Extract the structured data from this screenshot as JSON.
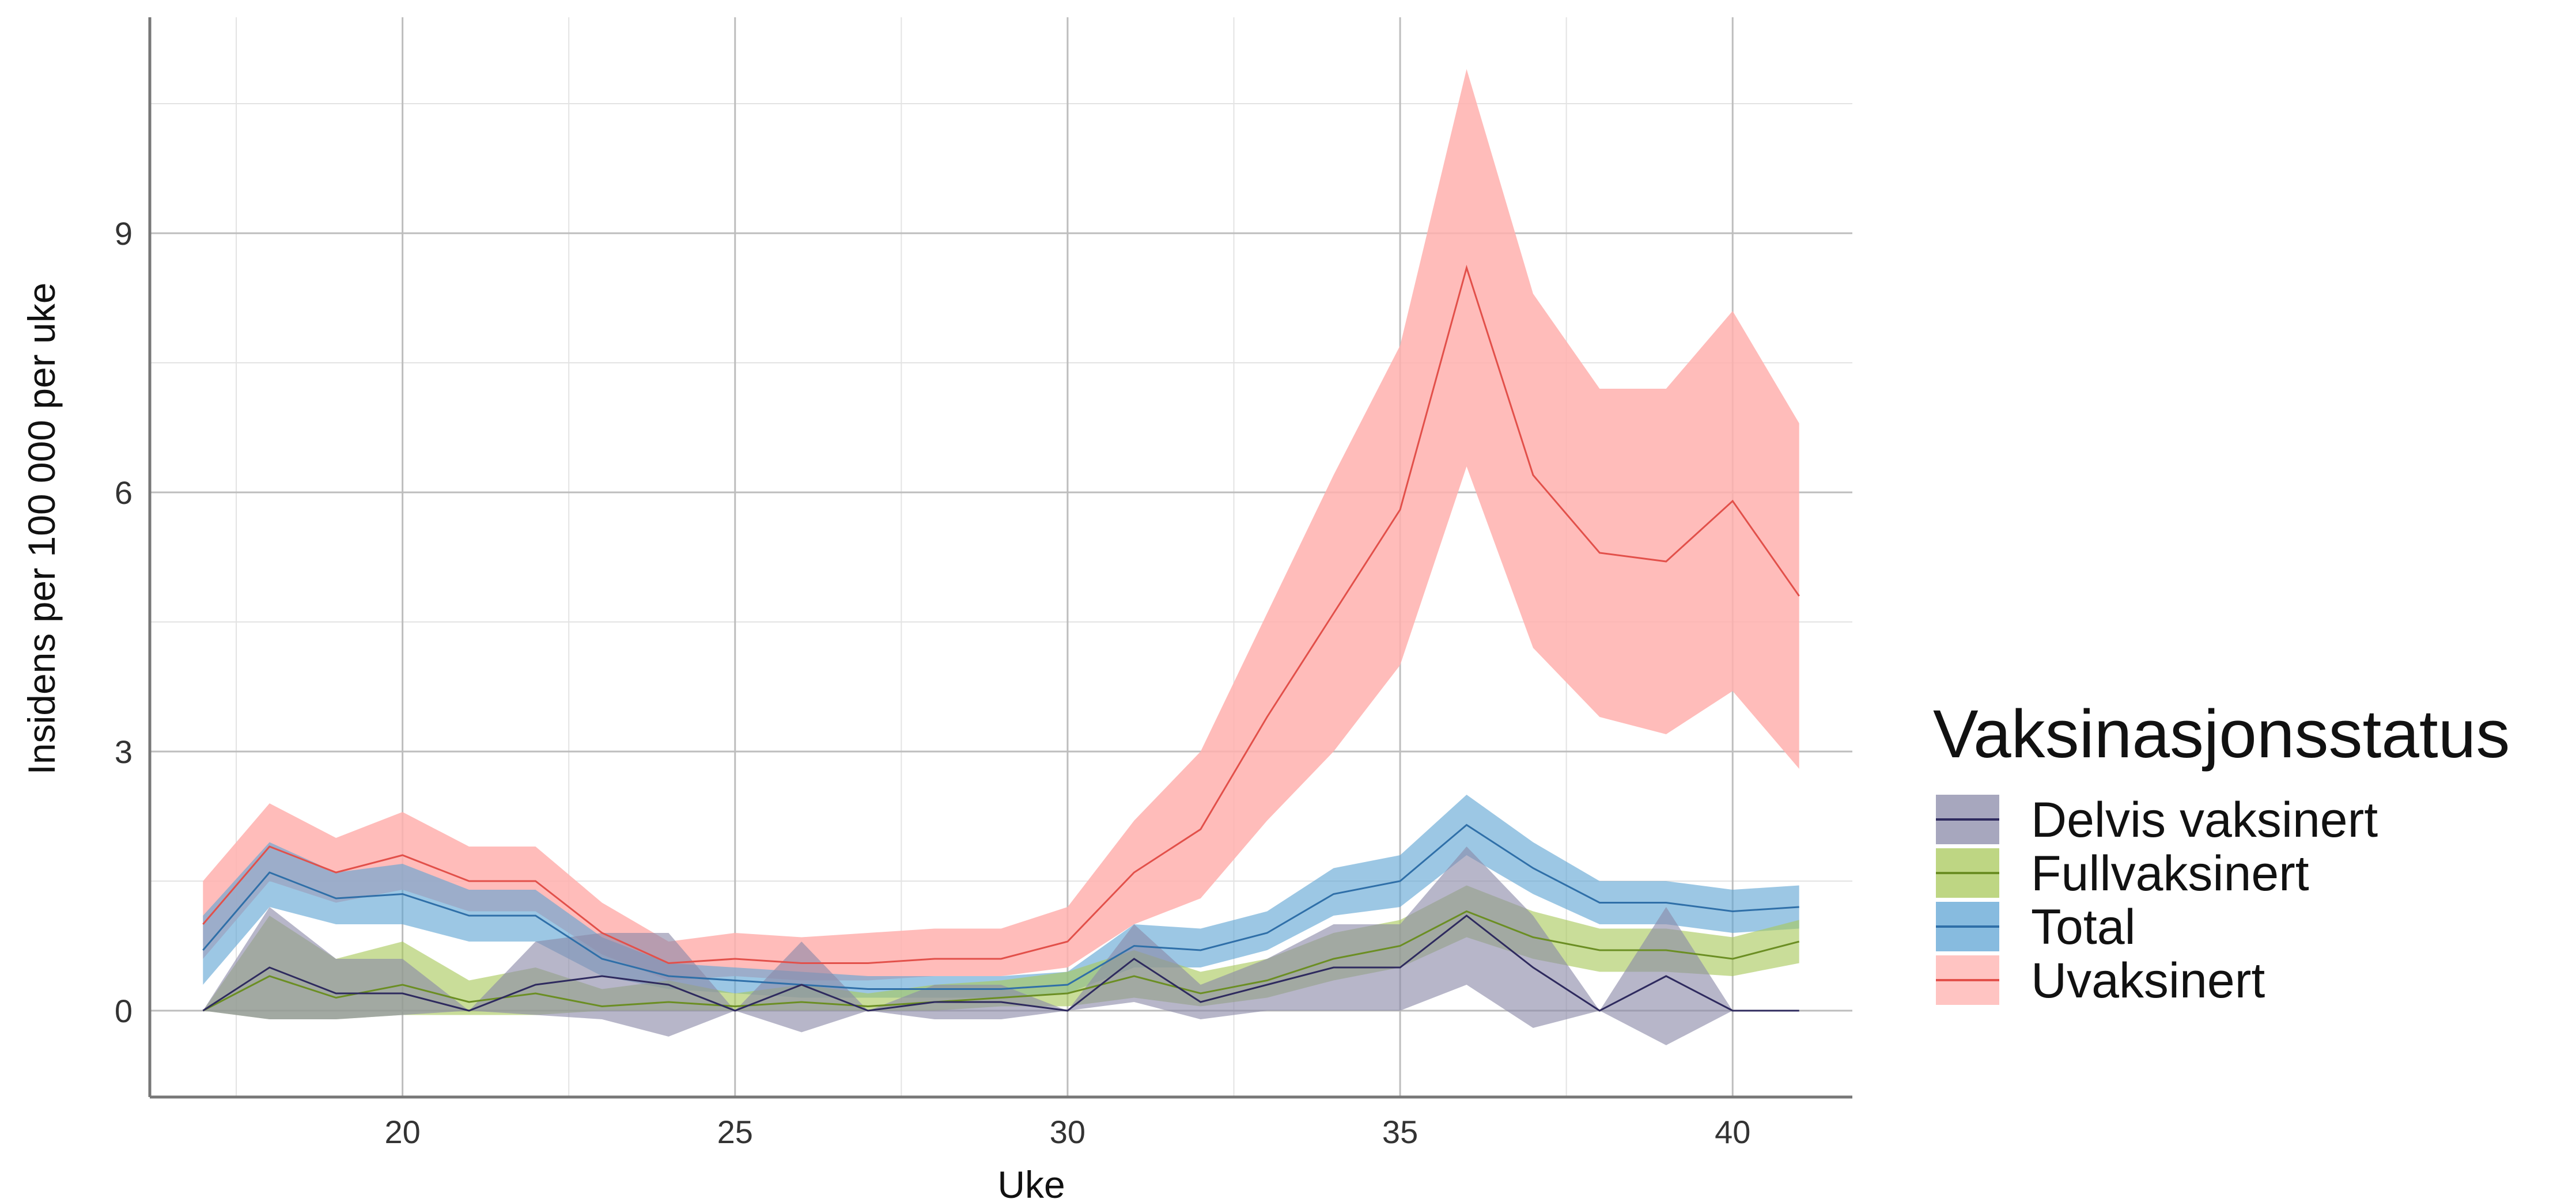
{
  "chart_data": {
    "type": "line",
    "xlabel": "Uke",
    "ylabel": "Insidens per 100 000 per uke",
    "xlim": [
      16.2,
      41.8
    ],
    "ylim": [
      -1.0,
      11.5
    ],
    "xticks": [
      20,
      25,
      30,
      35,
      40
    ],
    "yticks": [
      0,
      3,
      6,
      9
    ],
    "grid": true,
    "legend_title": "Vaksinasjonsstatus",
    "legend_position": "right",
    "x": [
      17,
      18,
      19,
      20,
      21,
      22,
      23,
      24,
      25,
      26,
      27,
      28,
      29,
      30,
      31,
      32,
      33,
      34,
      35,
      36,
      37,
      38,
      39,
      40,
      41
    ],
    "series": [
      {
        "name": "Delvis vaksinert",
        "color": "#2e2a5e",
        "fill": "#8a89a8",
        "values": [
          0.0,
          0.5,
          0.2,
          0.2,
          0.0,
          0.3,
          0.4,
          0.3,
          0.0,
          0.3,
          0.0,
          0.1,
          0.1,
          0.0,
          0.6,
          0.1,
          0.3,
          0.5,
          0.5,
          1.1,
          0.5,
          0.0,
          0.4,
          0.0,
          0.0
        ],
        "lower": [
          0.0,
          -0.1,
          -0.1,
          -0.05,
          0.0,
          -0.05,
          -0.1,
          -0.3,
          0.0,
          -0.25,
          0.0,
          -0.1,
          -0.1,
          0.0,
          0.1,
          -0.1,
          0.0,
          0.0,
          0.0,
          0.3,
          -0.2,
          0.0,
          -0.4,
          0.0,
          0.0
        ],
        "upper": [
          0.0,
          1.2,
          0.6,
          0.6,
          0.0,
          0.8,
          0.9,
          0.9,
          0.0,
          0.8,
          0.0,
          0.3,
          0.3,
          0.0,
          1.0,
          0.3,
          0.6,
          1.0,
          1.0,
          1.9,
          1.1,
          0.0,
          1.2,
          0.0,
          0.0
        ]
      },
      {
        "name": "Fullvaksinert",
        "color": "#6b8e23",
        "fill": "#a8c85a",
        "values": [
          0.0,
          0.4,
          0.15,
          0.3,
          0.1,
          0.2,
          0.05,
          0.1,
          0.05,
          0.1,
          0.05,
          0.1,
          0.15,
          0.2,
          0.4,
          0.2,
          0.35,
          0.6,
          0.75,
          1.15,
          0.85,
          0.7,
          0.7,
          0.6,
          0.8
        ],
        "lower": [
          0.0,
          -0.1,
          -0.1,
          -0.05,
          -0.05,
          -0.05,
          0.0,
          0.0,
          0.0,
          0.0,
          0.0,
          0.0,
          0.05,
          0.05,
          0.15,
          0.05,
          0.15,
          0.35,
          0.5,
          0.85,
          0.6,
          0.45,
          0.45,
          0.4,
          0.55
        ],
        "upper": [
          0.0,
          1.1,
          0.6,
          0.8,
          0.35,
          0.5,
          0.25,
          0.35,
          0.2,
          0.3,
          0.2,
          0.3,
          0.35,
          0.45,
          0.7,
          0.45,
          0.6,
          0.9,
          1.05,
          1.45,
          1.15,
          0.95,
          0.95,
          0.85,
          1.05
        ]
      },
      {
        "name": "Total",
        "color": "#2f6fa8",
        "fill": "#5fa4d4",
        "values": [
          0.7,
          1.6,
          1.3,
          1.35,
          1.1,
          1.1,
          0.6,
          0.4,
          0.35,
          0.3,
          0.25,
          0.25,
          0.25,
          0.3,
          0.75,
          0.7,
          0.9,
          1.35,
          1.5,
          2.15,
          1.65,
          1.25,
          1.25,
          1.15,
          1.2
        ],
        "lower": [
          0.3,
          1.2,
          1.0,
          1.0,
          0.8,
          0.8,
          0.4,
          0.25,
          0.2,
          0.15,
          0.15,
          0.15,
          0.15,
          0.2,
          0.5,
          0.5,
          0.7,
          1.1,
          1.2,
          1.8,
          1.35,
          1.0,
          1.0,
          0.9,
          0.95
        ],
        "upper": [
          1.1,
          1.95,
          1.6,
          1.7,
          1.4,
          1.4,
          0.85,
          0.55,
          0.5,
          0.45,
          0.4,
          0.4,
          0.4,
          0.45,
          1.0,
          0.95,
          1.15,
          1.65,
          1.8,
          2.5,
          1.95,
          1.5,
          1.5,
          1.4,
          1.45
        ]
      },
      {
        "name": "Uvaksinert",
        "color": "#e2504a",
        "fill": "#ffb0ae",
        "values": [
          1.0,
          1.9,
          1.6,
          1.8,
          1.5,
          1.5,
          0.9,
          0.55,
          0.6,
          0.55,
          0.55,
          0.6,
          0.6,
          0.8,
          1.6,
          2.1,
          3.4,
          4.6,
          5.8,
          8.6,
          6.2,
          5.3,
          5.2,
          5.9,
          4.8
        ],
        "lower": [
          0.6,
          1.5,
          1.25,
          1.4,
          1.15,
          1.15,
          0.65,
          0.35,
          0.4,
          0.35,
          0.35,
          0.4,
          0.4,
          0.5,
          1.0,
          1.3,
          2.2,
          3.0,
          4.0,
          6.3,
          4.2,
          3.4,
          3.2,
          3.7,
          2.8
        ],
        "upper": [
          1.5,
          2.4,
          2.0,
          2.3,
          1.9,
          1.9,
          1.25,
          0.8,
          0.9,
          0.85,
          0.9,
          0.95,
          0.95,
          1.2,
          2.2,
          3.0,
          4.6,
          6.2,
          7.7,
          10.9,
          8.3,
          7.2,
          7.2,
          8.1,
          6.8
        ]
      }
    ]
  }
}
